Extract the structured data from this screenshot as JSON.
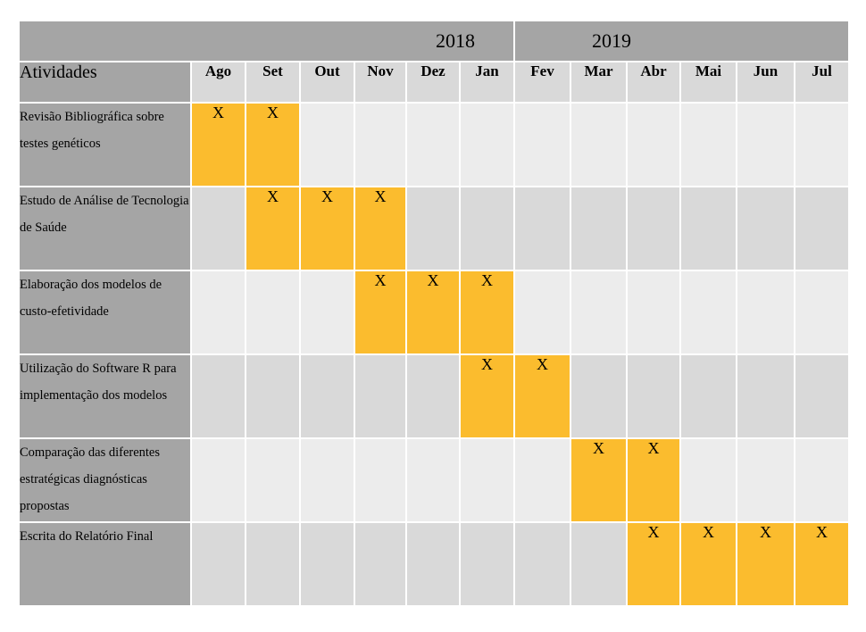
{
  "years": [
    "2018",
    "2019"
  ],
  "header_label": "Atividades",
  "months": [
    "Ago",
    "Set",
    "Out",
    "Nov",
    "Dez",
    "Jan",
    "Fev",
    "Mar",
    "Abr",
    "Mai",
    "Jun",
    "Jul"
  ],
  "mark": "X",
  "highlight_color": "#fbbc2e",
  "activities": [
    {
      "name": "Revisão Bibliográfica sobre testes genéticos",
      "months": [
        0,
        1
      ]
    },
    {
      "name": "Estudo de Análise de Tecnologia de Saúde",
      "months": [
        1,
        2,
        3
      ]
    },
    {
      "name": "Elaboração dos modelos de custo-efetividade",
      "months": [
        3,
        4,
        5
      ]
    },
    {
      "name": "Utilização do Software R para implementação dos modelos",
      "months": [
        5,
        6
      ]
    },
    {
      "name": "Comparação das diferentes estratégicas diagnósticas propostas",
      "months": [
        7,
        8
      ]
    },
    {
      "name": "Escrita do Relatório Final",
      "months": [
        8,
        9,
        10,
        11
      ]
    }
  ]
}
